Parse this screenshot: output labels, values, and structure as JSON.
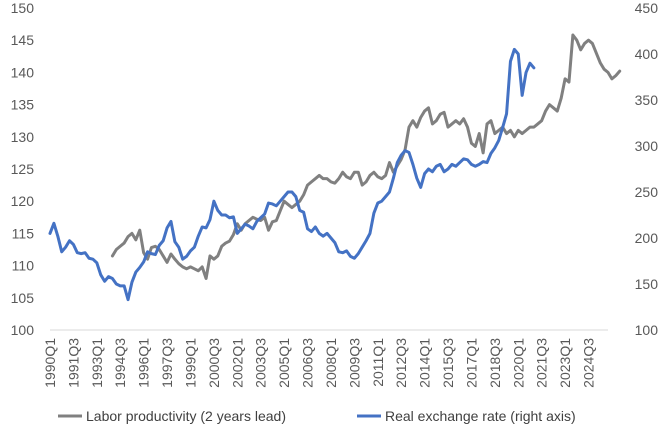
{
  "chart_data": {
    "type": "line",
    "title": "",
    "xlabel": "",
    "ylabel": "",
    "y_left": {
      "min": 100,
      "max": 150,
      "ticks": [
        100,
        105,
        110,
        115,
        120,
        125,
        130,
        135,
        140,
        145,
        150
      ]
    },
    "y_right": {
      "min": 100,
      "max": 450,
      "ticks": [
        100,
        150,
        200,
        250,
        300,
        350,
        400,
        450
      ]
    },
    "grid": false,
    "legend_position": "bottom",
    "x_range": {
      "start_year": 1990,
      "start_quarter": 1,
      "end_year": 2025,
      "end_quarter": 4
    },
    "x_tick_labels": [
      "1990Q1",
      "1991Q3",
      "1993Q1",
      "1994Q3",
      "1996Q1",
      "1997Q3",
      "1999Q1",
      "2000Q3",
      "2002Q1",
      "2003Q3",
      "2005Q1",
      "2006Q3",
      "2008Q1",
      "2009Q3",
      "2011Q1",
      "2012Q3",
      "2014Q1",
      "2015Q3",
      "2017Q1",
      "2018Q3",
      "2020Q1",
      "2021Q3",
      "2023Q1",
      "2024Q3"
    ],
    "series": [
      {
        "name": "Labor productivity (2 years lead)",
        "axis": "left",
        "color": "#808080",
        "start": "1994Q1",
        "values": [
          111.5,
          112.5,
          113.0,
          113.5,
          114.5,
          115.0,
          114.0,
          115.5,
          112.0,
          111.0,
          112.8,
          113.0,
          112.5,
          111.5,
          110.5,
          111.8,
          111.0,
          110.3,
          109.8,
          109.5,
          109.8,
          109.5,
          109.2,
          109.8,
          108.0,
          111.5,
          111.0,
          111.5,
          113.0,
          113.5,
          113.8,
          114.8,
          116.5,
          115.5,
          116.5,
          117.0,
          117.5,
          117.2,
          117.0,
          117.5,
          115.5,
          116.8,
          117.0,
          118.5,
          120.0,
          119.5,
          119.0,
          119.5,
          120.0,
          121.0,
          122.5,
          123.0,
          123.5,
          124.0,
          123.5,
          123.5,
          123.0,
          122.8,
          123.5,
          124.5,
          123.8,
          123.5,
          124.5,
          124.5,
          122.5,
          123.0,
          124.0,
          124.5,
          123.8,
          123.5,
          124.0,
          126.0,
          124.5,
          125.5,
          126.5,
          128.0,
          131.5,
          132.5,
          131.5,
          133.0,
          134.0,
          134.5,
          132.0,
          132.5,
          133.5,
          133.8,
          131.5,
          132.0,
          132.5,
          132.0,
          132.8,
          131.5,
          129.0,
          128.5,
          130.5,
          127.5,
          132.0,
          132.5,
          130.5,
          131.0,
          131.5,
          130.5,
          131.0,
          130.0,
          131.0,
          130.5,
          131.0,
          131.5,
          131.5,
          132.0,
          132.5,
          134.0,
          135.0,
          134.5,
          134.0,
          136.0,
          139.0,
          138.5,
          145.8,
          145.0,
          143.5,
          144.5,
          145.0,
          144.5,
          143.0,
          141.5,
          140.5,
          140.0,
          139.0,
          139.5,
          140.2
        ]
      },
      {
        "name": "Real exchange rate (right axis)",
        "axis": "right",
        "color": "#4472C4",
        "start": "1990Q1",
        "values": [
          205,
          216,
          202,
          185,
          190,
          197,
          193,
          184,
          183,
          184,
          178,
          177,
          173,
          160,
          153,
          158,
          156,
          150,
          148,
          148,
          133,
          152,
          163,
          168,
          174,
          185,
          183,
          182,
          192,
          197,
          211,
          218,
          196,
          190,
          177,
          180,
          186,
          190,
          202,
          212,
          211,
          220,
          240,
          230,
          225,
          225,
          222,
          223,
          205,
          210,
          215,
          213,
          210,
          218,
          222,
          226,
          238,
          237,
          235,
          240,
          245,
          250,
          250,
          245,
          230,
          228,
          210,
          207,
          212,
          205,
          202,
          205,
          200,
          195,
          185,
          184,
          186,
          180,
          178,
          183,
          190,
          197,
          205,
          227,
          238,
          240,
          245,
          250,
          265,
          282,
          290,
          295,
          293,
          280,
          265,
          255,
          270,
          275,
          272,
          278,
          280,
          272,
          275,
          280,
          278,
          282,
          286,
          285,
          280,
          278,
          280,
          283,
          282,
          292,
          298,
          306,
          320,
          335,
          392,
          405,
          400,
          355,
          380,
          390,
          385
        ]
      }
    ]
  }
}
